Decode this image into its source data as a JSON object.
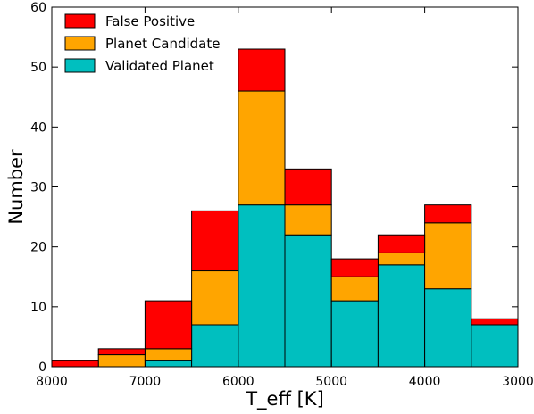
{
  "chart_data": {
    "type": "bar",
    "stacked": true,
    "xlabel": "T_eff [K]",
    "ylabel": "Number",
    "xlim": [
      8000,
      3000
    ],
    "ylim": [
      0,
      60
    ],
    "x_ticks": [
      8000,
      7000,
      6000,
      5000,
      4000,
      3000
    ],
    "y_ticks": [
      0,
      10,
      20,
      30,
      40,
      50,
      60
    ],
    "bin_edges": [
      8000,
      7500,
      7000,
      6500,
      6000,
      5500,
      5000,
      4500,
      4000,
      3500,
      3000
    ],
    "series": [
      {
        "name": "Validated Planet",
        "color": "#00BFBF",
        "values": [
          0,
          0,
          1,
          7,
          27,
          22,
          11,
          17,
          13,
          7
        ]
      },
      {
        "name": "Planet Candidate",
        "color": "#FFA500",
        "values": [
          0,
          2,
          2,
          9,
          19,
          5,
          4,
          2,
          11,
          0
        ]
      },
      {
        "name": "False Positive",
        "color": "#FF0000",
        "values": [
          1,
          1,
          8,
          10,
          7,
          6,
          3,
          3,
          3,
          1
        ]
      }
    ],
    "legend": {
      "placement": "top-left",
      "entries": [
        "False Positive",
        "Planet Candidate",
        "Validated Planet"
      ]
    },
    "grid": false
  }
}
